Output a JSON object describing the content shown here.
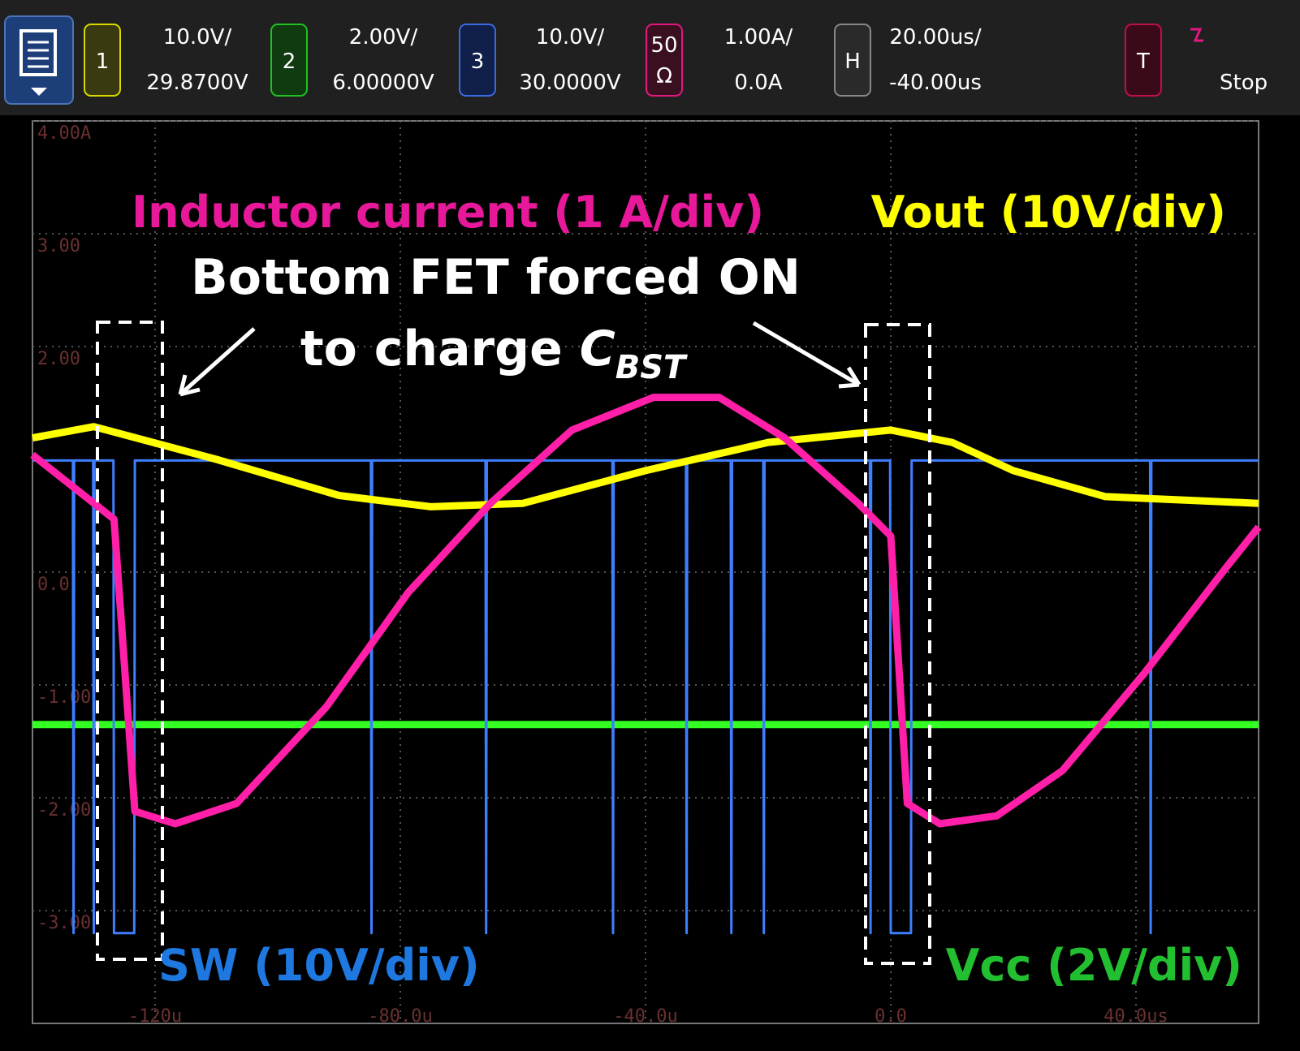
{
  "toolbar": {
    "ch1": {
      "num": "1",
      "scale": "10.0V/",
      "offset": "29.8700V"
    },
    "ch2": {
      "num": "2",
      "scale": "2.00V/",
      "offset": "6.00000V"
    },
    "ch3": {
      "num": "3",
      "scale": "10.0V/",
      "offset": "30.0000V"
    },
    "ch4": {
      "imp": "50",
      "ohm": "Ω",
      "scale": "1.00A/",
      "offset": "0.0A"
    },
    "horiz": {
      "label": "H",
      "scale": "20.00us/",
      "offset": "-40.00us"
    },
    "trigger": {
      "label": "T",
      "state": "Stop"
    }
  },
  "chart_data": {
    "type": "line",
    "xlim": [
      -140,
      60
    ],
    "ylim": [
      -4,
      4
    ],
    "xticks": [
      {
        "value": -120,
        "label": "-120u"
      },
      {
        "value": -80,
        "label": "-80.0u"
      },
      {
        "value": -40,
        "label": "-40.0u"
      },
      {
        "value": 0,
        "label": "0.0"
      },
      {
        "value": 40,
        "label": "40.0us"
      }
    ],
    "yticks": [
      {
        "value": 4,
        "label": "4.00A"
      },
      {
        "value": 3,
        "label": "3.00"
      },
      {
        "value": 2,
        "label": "2.00"
      },
      {
        "value": 0,
        "label": "0.0"
      },
      {
        "value": -1,
        "label": "-1.00"
      },
      {
        "value": -2,
        "label": "-2.00"
      },
      {
        "value": -3,
        "label": "-3.00"
      }
    ],
    "grid": true,
    "annotations": [
      "Bottom FET forced ON",
      "to charge ",
      "C",
      "BST"
    ],
    "series": [
      {
        "name": "Vcc (2V/div)",
        "color": "#33ff22",
        "x": [
          -140,
          60
        ],
        "values": [
          -1.35,
          -1.35
        ]
      },
      {
        "name": "SW (10V/div)",
        "color": "#3f7fff",
        "x": [
          -140,
          -133.4,
          -133.3,
          -133.2,
          -130.1,
          -130,
          -129.9,
          -126.8,
          -126.7,
          -123.4,
          -123.3,
          -84.8,
          -84.7,
          -84.6,
          -66.1,
          -66,
          -65.9,
          -45.4,
          -45.3,
          -45.2,
          -33.4,
          -33.3,
          -33.2,
          -26.1,
          -26,
          -25.9,
          -20.8,
          -20.7,
          -20.6,
          -3.4,
          -3.3,
          -3.2,
          -0.1,
          0,
          3.3,
          3.4,
          42.3,
          42.4,
          42.5,
          60
        ],
        "values": [
          0.99,
          0.99,
          -3.2,
          0.99,
          0.99,
          -3.2,
          0.99,
          0.99,
          -3.2,
          -3.2,
          0.99,
          0.99,
          -3.2,
          0.99,
          0.99,
          -3.2,
          0.99,
          0.99,
          -3.2,
          0.99,
          0.99,
          -3.2,
          0.99,
          0.99,
          -3.2,
          0.99,
          0.99,
          -3.2,
          0.99,
          0.99,
          -3.2,
          0.99,
          0.99,
          -3.2,
          -3.2,
          0.99,
          0.99,
          -3.2,
          0.99,
          0.99
        ]
      },
      {
        "name": "Vout (10V/div)",
        "color": "#ffff00",
        "x": [
          -140,
          -130,
          -110,
          -90,
          -75,
          -60,
          -40,
          -20,
          0,
          10,
          20,
          35,
          60
        ],
        "values": [
          1.19,
          1.29,
          1.0,
          0.68,
          0.58,
          0.61,
          0.9,
          1.15,
          1.26,
          1.15,
          0.9,
          0.67,
          0.61
        ]
      },
      {
        "name": "Inductor current (1 A/div)",
        "color": "#ff1fa8",
        "x": [
          -140,
          -126.7,
          -123.3,
          -116.7,
          -106.7,
          -92,
          -78.7,
          -65.3,
          -52,
          -38.7,
          -28,
          -17.3,
          -5.3,
          0,
          2.7,
          8,
          17.3,
          28,
          41.3,
          54.7,
          60
        ],
        "values": [
          1.04,
          0.47,
          -2.12,
          -2.23,
          -2.05,
          -1.19,
          -0.18,
          0.61,
          1.26,
          1.55,
          1.55,
          1.19,
          0.61,
          0.32,
          -2.05,
          -2.23,
          -2.16,
          -1.76,
          -0.9,
          0.04,
          0.4
        ]
      }
    ]
  }
}
